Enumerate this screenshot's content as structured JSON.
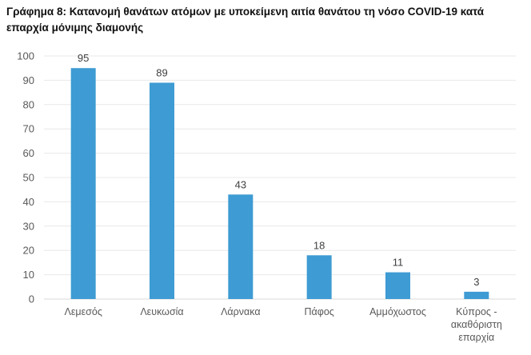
{
  "chart_data": {
    "type": "bar",
    "title": "Γράφημα 8: Κατανομή θανάτων ατόμων με υποκείμενη αιτία θανάτου τη νόσο COVID-19 κατά επαρχία μόνιμης διαμονής",
    "categories": [
      [
        "Λεμεσός"
      ],
      [
        "Λευκωσία"
      ],
      [
        "Λάρνακα"
      ],
      [
        "Πάφος"
      ],
      [
        "Αμμόχωστος"
      ],
      [
        "Κύπρος -",
        "ακαθόριστη",
        "επαρχία"
      ]
    ],
    "values": [
      95,
      89,
      43,
      18,
      11,
      3
    ],
    "xlabel": "",
    "ylabel": "",
    "ylim": [
      0,
      100
    ],
    "yticks": [
      0,
      10,
      20,
      30,
      40,
      50,
      60,
      70,
      80,
      90,
      100
    ],
    "grid": true,
    "bar_color": "#3e9bd3"
  }
}
